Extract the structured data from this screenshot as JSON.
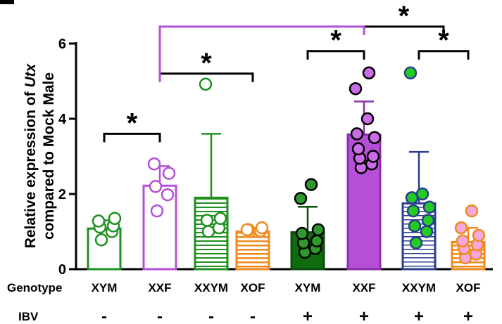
{
  "chart_data": {
    "type": "bar",
    "ylabel_line1_prefix": "Relative expression of ",
    "ylabel_line1_italic": "Utx",
    "ylabel_line2": "compared to Mock Male",
    "ylim": [
      0,
      6
    ],
    "yticks": [
      "0",
      "2",
      "4",
      "6"
    ],
    "row_labels": {
      "genotype": "Genotype",
      "ibv": "IBV"
    },
    "categories": [
      {
        "genotype": "XYM",
        "ibv": "-",
        "mean": 1.08,
        "sd": 0.22,
        "fill": "white",
        "stroke": "#1f8f1f",
        "pattern": "none",
        "points": [
          0.78,
          1.0,
          1.12,
          1.15,
          1.28,
          1.35
        ]
      },
      {
        "genotype": "XXF",
        "ibv": "-",
        "mean": 2.22,
        "sd": 0.52,
        "fill": "white",
        "stroke": "#b44fd6",
        "pattern": "none",
        "points": [
          1.55,
          1.98,
          2.2,
          2.55,
          2.8
        ]
      },
      {
        "genotype": "XXYM",
        "ibv": "-",
        "mean": 1.9,
        "sd": 1.7,
        "fill": "white",
        "stroke": "#1f8f1f",
        "pattern": "hstripe",
        "points": [
          1.0,
          1.1,
          1.3,
          1.35,
          4.92
        ]
      },
      {
        "genotype": "XOF",
        "ibv": "-",
        "mean": 1.0,
        "sd": 0.1,
        "fill": "white",
        "stroke": "#f08a1e",
        "pattern": "hstripe",
        "points": [
          1.0,
          1.02,
          1.05,
          1.1,
          1.05
        ]
      },
      {
        "genotype": "XYM",
        "ibv": "+",
        "mean": 0.98,
        "sd": 0.68,
        "fill": "#0e6b0e",
        "stroke": "#0b4d0b",
        "pattern": "none",
        "points": [
          0.45,
          0.55,
          0.7,
          0.75,
          0.95,
          1.05,
          1.88,
          2.25
        ]
      },
      {
        "genotype": "XXF",
        "ibv": "+",
        "mean": 3.58,
        "sd": 0.88,
        "fill": "#b44fd6",
        "stroke": "#8a2ea8",
        "pattern": "none",
        "points": [
          2.7,
          2.8,
          2.95,
          3.0,
          3.2,
          3.5,
          3.6,
          4.0,
          4.8,
          5.22
        ]
      },
      {
        "genotype": "XXYM",
        "ibv": "+",
        "mean": 1.75,
        "sd": 1.37,
        "fill": "white",
        "stroke": "#2a3d8f",
        "pattern": "hstripe",
        "points": [
          0.7,
          1.0,
          1.15,
          1.3,
          1.55,
          1.65,
          1.9,
          2.0,
          5.22
        ]
      },
      {
        "genotype": "XOF",
        "ibv": "+",
        "mean": 0.72,
        "sd": 0.38,
        "fill": "white",
        "stroke": "#f08a1e",
        "pattern": "hstripe",
        "points": [
          0.3,
          0.4,
          0.55,
          0.65,
          0.75,
          0.9,
          1.1,
          1.55
        ]
      }
    ],
    "marker_fill": {
      "0": "white",
      "1": "white",
      "2": "white",
      "3": "white",
      "4": "#2e9a2e",
      "5": "#c96ce6",
      "6": "#22cc22",
      "7": "#f5a8dc"
    },
    "significance": [
      {
        "from": 0,
        "to": 1,
        "y": 3.6,
        "stem_left": 3.6,
        "stem_right": 3.6,
        "label": "*"
      },
      {
        "from": 1,
        "to": 3,
        "y": 5.2,
        "stem_left": 5.2,
        "stem_right": 5.2,
        "label": "*"
      },
      {
        "from": 4,
        "to": 5,
        "y": 5.8,
        "stem_left": 5.8,
        "stem_right": 5.8,
        "label": "*"
      },
      {
        "from": 6,
        "to": 7,
        "y": 5.8,
        "stem_left": 5.8,
        "stem_right": 5.8,
        "label": "*"
      },
      {
        "from": 5,
        "to": 6.5,
        "y": 6.45,
        "stem_left": 6.45,
        "stem_right": 6.45,
        "label": "*"
      },
      {
        "from": 1,
        "to": 5,
        "y": 6.45,
        "stem_left": 5.2,
        "stem_right": 6.45,
        "label": "*",
        "color": "#b44fd6"
      }
    ]
  }
}
